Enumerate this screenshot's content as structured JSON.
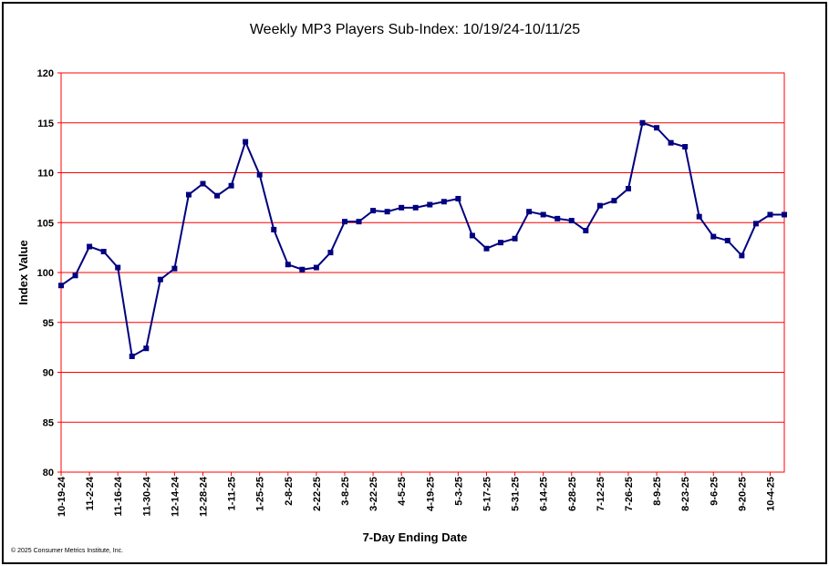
{
  "chart_data": {
    "type": "line",
    "title": "Weekly MP3 Players Sub-Index: 10/19/24-10/11/25",
    "xlabel": "7-Day Ending Date",
    "ylabel": "Index Value",
    "ylim": [
      80,
      120
    ],
    "yticks": [
      80,
      85,
      90,
      95,
      100,
      105,
      110,
      115,
      120
    ],
    "grid": true,
    "x_tick_labels": [
      "10-19-24",
      "11-2-24",
      "11-16-24",
      "11-30-24",
      "12-14-24",
      "12-28-24",
      "1-11-25",
      "1-25-25",
      "2-8-25",
      "2-22-25",
      "3-8-25",
      "3-22-25",
      "4-5-25",
      "4-19-25",
      "5-3-25",
      "5-17-25",
      "5-31-25",
      "6-14-25",
      "6-28-25",
      "7-12-25",
      "7-26-25",
      "8-9-25",
      "8-23-25",
      "9-6-25",
      "9-20-25",
      "10-4-25"
    ],
    "series": [
      {
        "name": "MP3 Players Sub-Index",
        "color": "#000080",
        "values": [
          98.7,
          99.7,
          102.6,
          102.1,
          100.5,
          91.6,
          92.4,
          99.3,
          100.4,
          107.8,
          108.9,
          107.7,
          108.7,
          113.1,
          109.8,
          104.3,
          100.8,
          100.3,
          100.5,
          102.0,
          105.1,
          105.1,
          106.2,
          106.1,
          106.5,
          106.5,
          106.8,
          107.1,
          107.4,
          103.7,
          102.4,
          103.0,
          103.4,
          106.1,
          105.8,
          105.4,
          105.2,
          104.2,
          106.7,
          107.2,
          108.4,
          115.0,
          114.5,
          113.0,
          112.6,
          105.6,
          103.6,
          103.2,
          101.7,
          104.9,
          105.8,
          105.8
        ]
      }
    ]
  },
  "copyright": "© 2025 Consumer Metrics Institute, Inc.",
  "colors": {
    "grid": "#ff0000",
    "line": "#000080"
  }
}
